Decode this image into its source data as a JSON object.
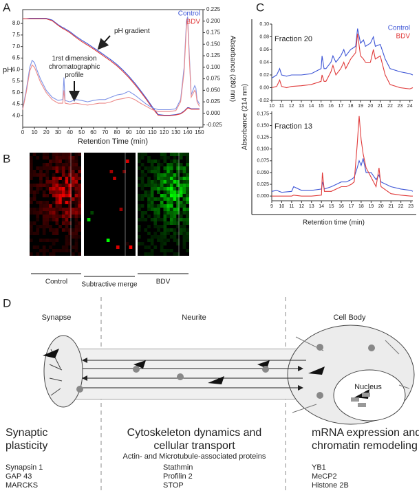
{
  "panels": [
    "A",
    "B",
    "C",
    "D"
  ],
  "chart_data": [
    {
      "type": "line",
      "xlabel": "Retention Time (min)",
      "ylabel": "pH",
      "y2label": "Absorbance (280 nm)",
      "annotations": [
        "pH gradient",
        "1rst dimension chromatographic profile"
      ],
      "legend": "upper right",
      "x": [
        0,
        3,
        6,
        8,
        10,
        12,
        15,
        20,
        25,
        30,
        34,
        35,
        36,
        40,
        45,
        50,
        55,
        60,
        65,
        70,
        75,
        80,
        85,
        90,
        95,
        100,
        105,
        110,
        115,
        120,
        125,
        130,
        134,
        137,
        139,
        140,
        141,
        143,
        146,
        147,
        148,
        150
      ],
      "xlim": [
        0,
        153
      ],
      "xticks": [
        0,
        10,
        20,
        30,
        40,
        50,
        60,
        70,
        80,
        90,
        100,
        110,
        120,
        130,
        140,
        150
      ],
      "ylim": [
        3.5,
        8.6
      ],
      "yticks": [
        {
          "value": 4,
          "label": "4.0"
        },
        4.5,
        {
          "value": 5,
          "label": "5.0"
        },
        5.5,
        {
          "value": 6,
          "label": "6.0"
        },
        6.5,
        {
          "value": 7,
          "label": "7.0"
        },
        7.5,
        {
          "value": 8,
          "label": "8.0"
        }
      ],
      "y2lim": [
        -0.03,
        0.225
      ],
      "y2ticks": [
        -0.025,
        {
          "value": 0,
          "label": "0.000"
        },
        0.025,
        {
          "value": 0.05,
          "label": "0.050"
        },
        0.075,
        {
          "value": 0.1,
          "label": "0.100"
        },
        0.125,
        {
          "value": 0.15,
          "label": "0.150"
        },
        0.175,
        {
          "value": 0.2,
          "label": "0.200"
        },
        0.225
      ],
      "series": [
        {
          "name": "Control",
          "color": "#3d55d6",
          "values": [
            8.2,
            8.2,
            8.22,
            8.22,
            8.22,
            8.22,
            8.22,
            8.22,
            8.15,
            7.95,
            7.82,
            7.8,
            7.77,
            7.65,
            7.45,
            7.28,
            7.12,
            6.95,
            6.78,
            6.6,
            6.42,
            6.22,
            5.98,
            5.72,
            5.42,
            5.1,
            4.75,
            4.38,
            4.05,
            4.02,
            4.02,
            4.05,
            4.1,
            4.2,
            4.3,
            4.35,
            4.35,
            4.3,
            4.3,
            4.3,
            4.3,
            4.3
          ]
        },
        {
          "name": "BDV",
          "color": "#e03a3a",
          "values": [
            8.2,
            8.2,
            8.2,
            8.2,
            8.2,
            8.2,
            8.2,
            8.2,
            8.12,
            7.92,
            7.78,
            7.76,
            7.73,
            7.6,
            7.4,
            7.22,
            7.06,
            6.9,
            6.72,
            6.54,
            6.36,
            6.16,
            5.92,
            5.66,
            5.36,
            5.04,
            4.7,
            4.33,
            4.02,
            4.0,
            4.0,
            4.03,
            4.08,
            4.18,
            4.28,
            4.33,
            4.33,
            4.28,
            4.28,
            4.28,
            4.28,
            4.28
          ]
        },
        {
          "axis": "y2",
          "color": "#7f93e6",
          "values": [
            0.01,
            0.05,
            0.1,
            0.115,
            0.11,
            0.095,
            0.075,
            0.05,
            0.035,
            0.028,
            0.03,
            0.078,
            0.028,
            0.025,
            0.03,
            0.028,
            0.025,
            0.028,
            0.03,
            0.03,
            0.035,
            0.04,
            0.042,
            0.048,
            0.04,
            0.03,
            0.02,
            0.012,
            0.008,
            0.008,
            0.008,
            0.01,
            0.03,
            0.1,
            0.2,
            0.21,
            0.15,
            0.04,
            0.06,
            0.055,
            0.03,
            0.02
          ]
        },
        {
          "axis": "y2",
          "color": "#ec8a8a",
          "values": [
            0.008,
            0.045,
            0.092,
            0.105,
            0.1,
            0.088,
            0.068,
            0.045,
            0.03,
            0.022,
            0.022,
            0.05,
            0.022,
            0.02,
            0.022,
            0.02,
            0.018,
            0.02,
            0.022,
            0.022,
            0.025,
            0.03,
            0.032,
            0.035,
            0.03,
            0.022,
            0.015,
            0.008,
            0.004,
            0.004,
            0.004,
            0.006,
            0.025,
            0.09,
            0.19,
            0.2,
            0.14,
            0.035,
            0.05,
            0.045,
            0.025,
            0.015
          ]
        }
      ]
    },
    {
      "type": "line",
      "title": "Fraction 20",
      "ylabel": "Absorbance (214 nm)",
      "legend": "upper right",
      "x": [
        10,
        10.5,
        10.8,
        11,
        11.5,
        12,
        13,
        14,
        15,
        15.1,
        15.3,
        15.5,
        16,
        16.2,
        16.5,
        17,
        17.3,
        17.5,
        18,
        18.5,
        18.7,
        19,
        19.3,
        19.5,
        20,
        20.3,
        20.5,
        21,
        21.5,
        22,
        23,
        24,
        24.3
      ],
      "xlim": [
        10,
        24.3
      ],
      "xticks": [
        10,
        11,
        12,
        13,
        14,
        15,
        16,
        17,
        18,
        19,
        20,
        21,
        22,
        23,
        24
      ],
      "ylim": [
        -0.02,
        0.1
      ],
      "yticks": [
        -0.02,
        {
          "value": 0,
          "label": "0.00"
        },
        0.02,
        0.04,
        0.06,
        0.08,
        {
          "value": 0.1,
          "label": "0.10"
        }
      ],
      "series": [
        {
          "name": "Control",
          "color": "#3d55d6",
          "values": [
            0.015,
            0.02,
            0.03,
            0.02,
            0.018,
            0.02,
            0.02,
            0.022,
            0.03,
            0.05,
            0.03,
            0.03,
            0.04,
            0.05,
            0.04,
            0.05,
            0.06,
            0.05,
            0.06,
            0.065,
            0.093,
            0.07,
            0.075,
            0.065,
            0.07,
            0.08,
            0.065,
            0.068,
            0.045,
            0.03,
            0.025,
            0.022,
            0.02
          ]
        },
        {
          "name": "BDV",
          "color": "#e03a3a",
          "values": [
            0,
            0.002,
            0.012,
            0.002,
            0,
            0.002,
            0.003,
            0.005,
            0.01,
            0.02,
            0.01,
            0.01,
            0.025,
            0.035,
            0.02,
            0.03,
            0.04,
            0.03,
            0.045,
            0.055,
            0.085,
            0.05,
            0.045,
            0.04,
            0.04,
            0.06,
            0.045,
            0.05,
            0.02,
            0.005,
            0,
            -0.002,
            0
          ]
        }
      ]
    },
    {
      "type": "line",
      "title": "Fraction 13",
      "xlabel": "Retention time (min)",
      "x": [
        9,
        9.5,
        10,
        11,
        11.2,
        12,
        13,
        14,
        14.1,
        14.3,
        15,
        15.5,
        16,
        16.5,
        17,
        17.3,
        17.6,
        17.8,
        18,
        18.2,
        18.5,
        19,
        19.5,
        19.8,
        20,
        21,
        22,
        23,
        23.2
      ],
      "xlim": [
        9,
        23.2
      ],
      "xticks": [
        9,
        10,
        11,
        12,
        13,
        14,
        15,
        16,
        17,
        18,
        19,
        20,
        21,
        22,
        23
      ],
      "ylim": [
        -0.01,
        0.18
      ],
      "yticks": [
        {
          "value": 0,
          "label": "0.000"
        },
        0.025,
        {
          "value": 0.05,
          "label": "0.050"
        },
        0.075,
        {
          "value": 0.1,
          "label": "0.100"
        },
        0.125,
        {
          "value": 0.15,
          "label": "0.150"
        },
        0.175
      ],
      "series": [
        {
          "color": "#3d55d6",
          "values": [
            0.01,
            0.012,
            0.008,
            0.01,
            0.02,
            0.012,
            0.012,
            0.015,
            0.03,
            0.015,
            0.02,
            0.025,
            0.03,
            0.03,
            0.035,
            0.04,
            0.06,
            0.075,
            0.065,
            0.08,
            0.05,
            0.05,
            0.035,
            0.045,
            0.03,
            0.02,
            0.015,
            0.012,
            0.01
          ]
        },
        {
          "color": "#e03a3a",
          "values": [
            0,
            0,
            0,
            0,
            0.002,
            0,
            0,
            0.002,
            0.05,
            0.01,
            0.01,
            0.015,
            0.02,
            0.02,
            0.025,
            0.03,
            0.11,
            0.17,
            0.12,
            0.09,
            0.06,
            0.04,
            0.02,
            0.06,
            0.02,
            0.005,
            0.002,
            0,
            0
          ]
        }
      ]
    }
  ],
  "panel_b": {
    "labels": [
      "Control",
      "Subtractive merge",
      "BDV"
    ]
  },
  "diagram": {
    "regions": [
      "Synapse",
      "Neurite",
      "Cell Body"
    ],
    "nucleus": "Nucleus",
    "functions": [
      {
        "title": "Synaptic plasticity",
        "proteins": [
          "Synapsin 1",
          "GAP 43",
          "MARCKS"
        ]
      },
      {
        "title": "Cytoskeleton dynamics and cellular transport",
        "subtitle": "Actin- and Microtubule-associated proteins",
        "proteins": [
          "Stathmin",
          "Profilin 2",
          "STOP"
        ]
      },
      {
        "title": "mRNA expression and chromatin remodeling",
        "proteins": [
          "YB1",
          "MeCP2",
          "Histone 2B"
        ]
      }
    ]
  }
}
